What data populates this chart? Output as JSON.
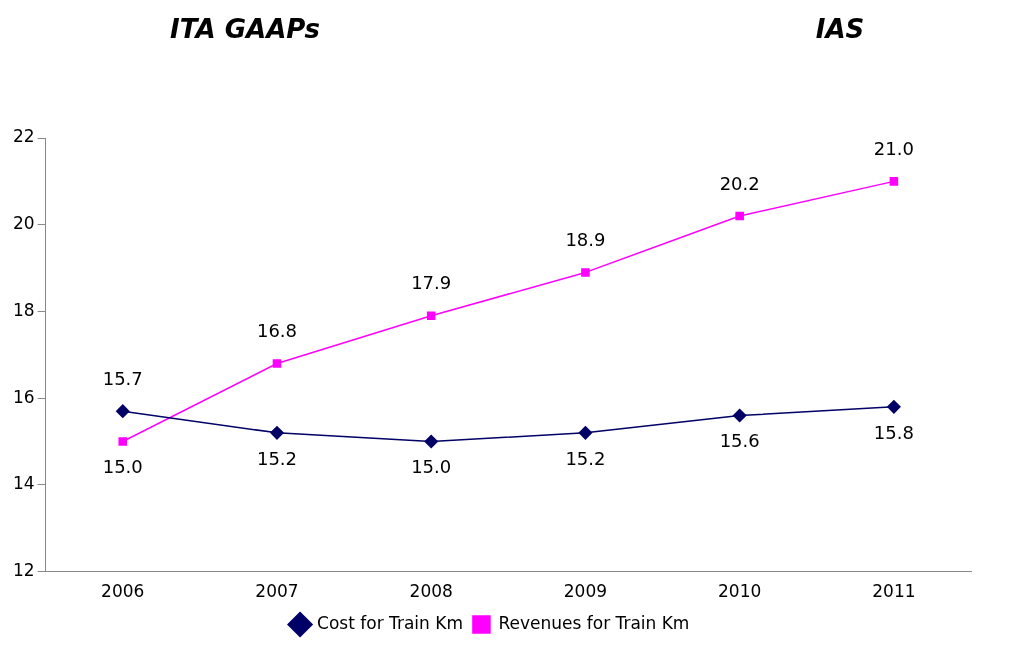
{
  "chart_data": {
    "type": "line",
    "annotations": [
      "ITA GAAPs",
      "IAS"
    ],
    "categories": [
      "2006",
      "2007",
      "2008",
      "2009",
      "2010",
      "2011"
    ],
    "series": [
      {
        "name": "Cost for Train Km",
        "color": "#000066",
        "marker": "diamond",
        "values": [
          15.7,
          15.2,
          15.0,
          15.2,
          15.6,
          15.8
        ],
        "value_labels": [
          "15.7",
          "15.2",
          "15.0",
          "15.2",
          "15.6",
          "15.8"
        ]
      },
      {
        "name": "Revenues for Train Km",
        "color": "#ff00ff",
        "marker": "square",
        "values": [
          15.0,
          16.8,
          17.9,
          18.9,
          20.2,
          21.0
        ],
        "value_labels": [
          "15.0",
          "16.8",
          "17.9",
          "18.9",
          "20.2",
          "21.0"
        ]
      }
    ],
    "ylim": [
      12,
      22
    ],
    "yticks": [
      12,
      14,
      16,
      18,
      20,
      22
    ],
    "grid": false,
    "legend": "bottom"
  }
}
